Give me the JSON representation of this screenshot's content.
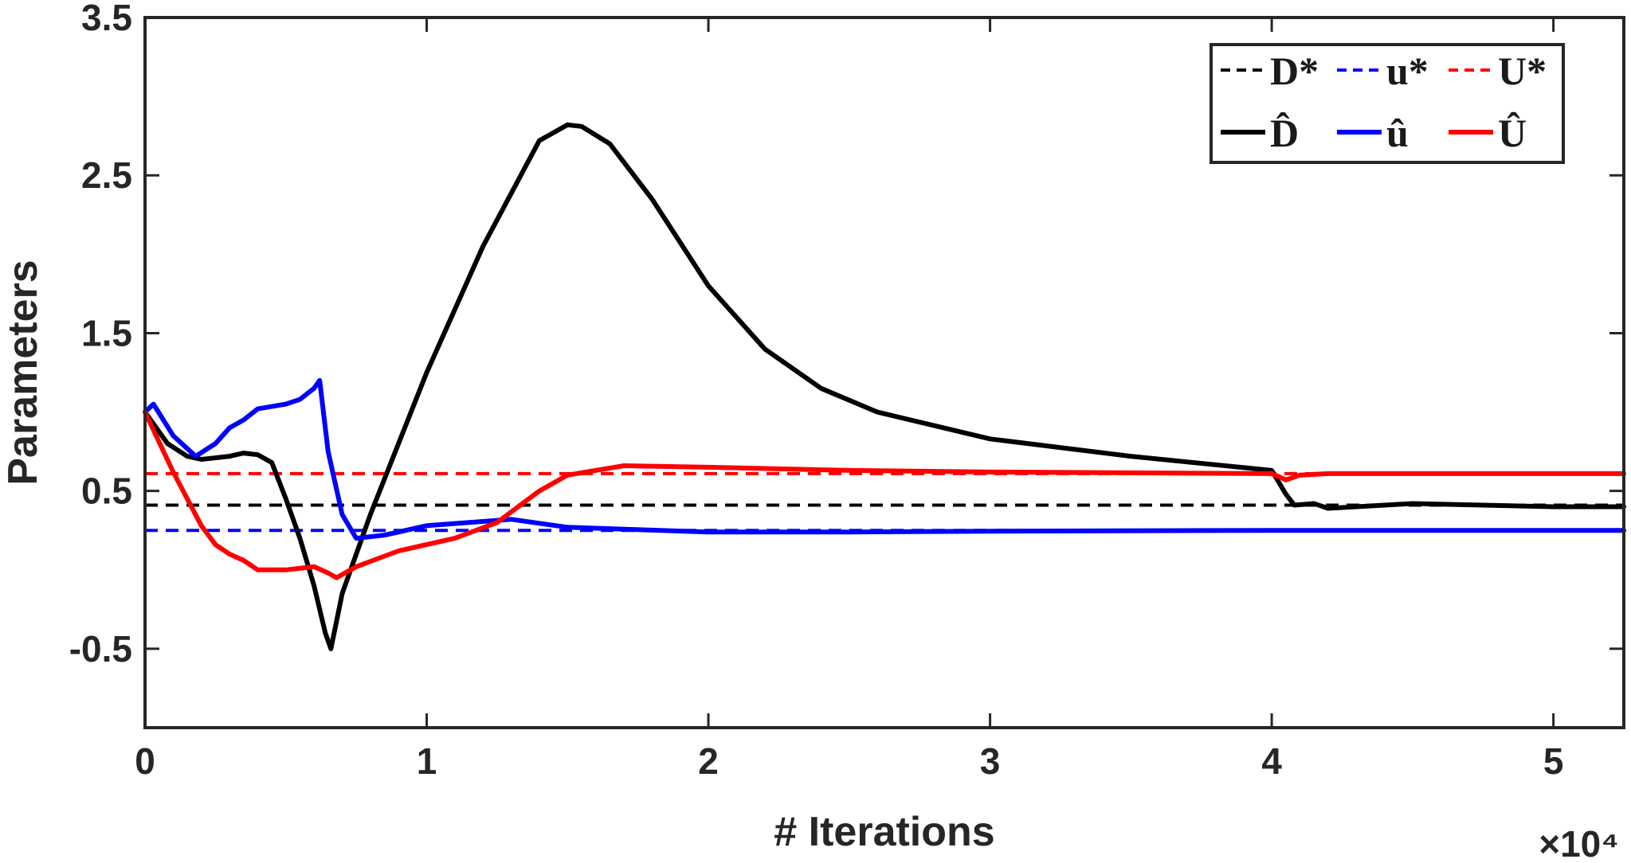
{
  "chart_data": {
    "type": "line",
    "title": "",
    "xlabel": "# Iterations",
    "ylabel": "Parameters",
    "x_multiplier_label": "×10⁴",
    "xlim": [
      0,
      5.25
    ],
    "ylim": [
      -1,
      3.5
    ],
    "xticks": [
      0,
      1,
      2,
      3,
      4,
      5
    ],
    "xtick_labels": [
      "0",
      "1",
      "2",
      "3",
      "4",
      "5"
    ],
    "yticks": [
      -0.5,
      0.5,
      1.5,
      2.5,
      3.5
    ],
    "ytick_labels": [
      "-0.5",
      "0.5",
      "1.5",
      "2.5",
      "3.5"
    ],
    "grid": false,
    "legend_position": "top-right",
    "series": [
      {
        "name": "D*",
        "legend_label": "D*",
        "color": "#000000",
        "style": "dashed",
        "type": "constant",
        "value": 0.41
      },
      {
        "name": "u*",
        "legend_label": "u*",
        "color": "#0000ff",
        "style": "dashed",
        "type": "constant",
        "value": 0.25
      },
      {
        "name": "U*",
        "legend_label": "U*",
        "color": "#ff0000",
        "style": "dashed",
        "type": "constant",
        "value": 0.61
      },
      {
        "name": "D_hat",
        "legend_label": "D̂",
        "color": "#000000",
        "style": "solid",
        "x": [
          0,
          0.08,
          0.15,
          0.2,
          0.3,
          0.35,
          0.4,
          0.45,
          0.5,
          0.55,
          0.6,
          0.64,
          0.66,
          0.7,
          0.8,
          1.0,
          1.2,
          1.4,
          1.5,
          1.55,
          1.65,
          1.8,
          2.0,
          2.2,
          2.4,
          2.6,
          3.0,
          3.5,
          4.0,
          4.05,
          4.08,
          4.15,
          4.2,
          4.3,
          4.5,
          5.0,
          5.25
        ],
        "values": [
          1.0,
          0.8,
          0.72,
          0.7,
          0.72,
          0.74,
          0.73,
          0.68,
          0.45,
          0.2,
          -0.1,
          -0.4,
          -0.5,
          -0.15,
          0.35,
          1.25,
          2.05,
          2.72,
          2.82,
          2.81,
          2.7,
          2.35,
          1.8,
          1.4,
          1.15,
          1.0,
          0.83,
          0.72,
          0.63,
          0.48,
          0.41,
          0.42,
          0.39,
          0.4,
          0.42,
          0.4,
          0.4
        ]
      },
      {
        "name": "u_hat",
        "legend_label": "û",
        "color": "#0000ff",
        "style": "solid",
        "x": [
          0,
          0.03,
          0.1,
          0.18,
          0.25,
          0.3,
          0.35,
          0.4,
          0.5,
          0.55,
          0.6,
          0.62,
          0.65,
          0.7,
          0.75,
          0.85,
          1.0,
          1.3,
          1.5,
          2.0,
          2.5,
          3.0,
          4.0,
          5.25
        ],
        "values": [
          1.0,
          1.05,
          0.85,
          0.72,
          0.8,
          0.9,
          0.95,
          1.02,
          1.05,
          1.08,
          1.15,
          1.2,
          0.75,
          0.35,
          0.2,
          0.22,
          0.28,
          0.32,
          0.27,
          0.24,
          0.24,
          0.245,
          0.25,
          0.25
        ]
      },
      {
        "name": "U_hat",
        "legend_label": "Û",
        "color": "#ff0000",
        "style": "solid",
        "x": [
          0,
          0.1,
          0.2,
          0.25,
          0.3,
          0.35,
          0.4,
          0.5,
          0.6,
          0.65,
          0.68,
          0.75,
          0.9,
          1.1,
          1.25,
          1.4,
          1.5,
          1.7,
          2.0,
          2.5,
          3.0,
          4.0,
          4.05,
          4.1,
          4.2,
          5.25
        ],
        "values": [
          1.0,
          0.62,
          0.28,
          0.16,
          0.1,
          0.06,
          0.0,
          0.0,
          0.02,
          -0.02,
          -0.05,
          0.02,
          0.12,
          0.2,
          0.3,
          0.5,
          0.6,
          0.66,
          0.65,
          0.63,
          0.62,
          0.61,
          0.57,
          0.6,
          0.61,
          0.61
        ]
      }
    ]
  }
}
